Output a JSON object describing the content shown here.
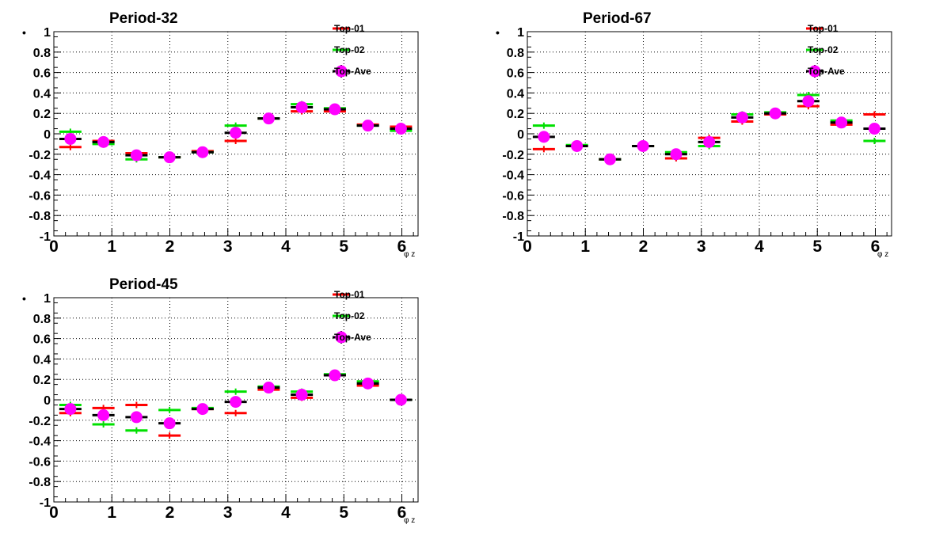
{
  "legend_labels": [
    "Top-01",
    "Top-02",
    "Top-Ave"
  ],
  "colors": {
    "top01": "#ff0000",
    "top02": "#00e000",
    "topave_marker": "#ff00ff",
    "topave_line": "#000000"
  },
  "chart_data": [
    {
      "type": "scatter",
      "title": "Period-32",
      "xlabel": "φ z",
      "ylabel": "•",
      "xlim": [
        0,
        6.28
      ],
      "ylim": [
        -1,
        1
      ],
      "grid": true,
      "legend_position": "top-right",
      "x_ticks": [
        "0",
        "1",
        "2",
        "3",
        "4",
        "5",
        "6"
      ],
      "y_ticks": [
        "-1",
        "-0.8",
        "-0.6",
        "-0.4",
        "-0.2",
        "0",
        "0.2",
        "0.4",
        "0.6",
        "0.8",
        "1"
      ],
      "x": [
        0.285,
        0.855,
        1.425,
        1.995,
        2.565,
        3.135,
        3.705,
        4.275,
        4.845,
        5.415,
        5.985
      ],
      "series": [
        {
          "name": "Top-01",
          "values": [
            -0.13,
            -0.07,
            -0.19,
            -0.23,
            -0.17,
            -0.07,
            0.15,
            0.22,
            0.22,
            0.09,
            0.07
          ]
        },
        {
          "name": "Top-02",
          "values": [
            0.02,
            -0.1,
            -0.25,
            -0.23,
            -0.18,
            0.08,
            0.15,
            0.29,
            0.25,
            0.08,
            0.03
          ]
        },
        {
          "name": "Top-Ave",
          "values": [
            -0.05,
            -0.08,
            -0.21,
            -0.23,
            -0.18,
            0.01,
            0.15,
            0.26,
            0.24,
            0.08,
            0.05
          ]
        }
      ]
    },
    {
      "type": "scatter",
      "title": "Period-67",
      "xlabel": "φ z",
      "ylabel": "•",
      "xlim": [
        0,
        6.28
      ],
      "ylim": [
        -1,
        1
      ],
      "grid": true,
      "legend_position": "top-right",
      "x_ticks": [
        "0",
        "1",
        "2",
        "3",
        "4",
        "5",
        "6"
      ],
      "y_ticks": [
        "-1",
        "-0.8",
        "-0.6",
        "-0.4",
        "-0.2",
        "0",
        "0.2",
        "0.4",
        "0.6",
        "0.8",
        "1"
      ],
      "x": [
        0.285,
        0.855,
        1.425,
        1.995,
        2.565,
        3.135,
        3.705,
        4.275,
        4.845,
        5.415,
        5.985
      ],
      "series": [
        {
          "name": "Top-01",
          "values": [
            -0.15,
            -0.12,
            -0.25,
            -0.12,
            -0.24,
            -0.04,
            0.12,
            0.19,
            0.27,
            0.09,
            0.19
          ]
        },
        {
          "name": "Top-02",
          "values": [
            0.08,
            -0.11,
            -0.25,
            -0.12,
            -0.18,
            -0.12,
            0.19,
            0.21,
            0.38,
            0.13,
            -0.07
          ]
        },
        {
          "name": "Top-Ave",
          "values": [
            -0.03,
            -0.12,
            -0.25,
            -0.12,
            -0.2,
            -0.08,
            0.16,
            0.2,
            0.32,
            0.11,
            0.05
          ]
        }
      ]
    },
    {
      "type": "scatter",
      "title": "Period-45",
      "xlabel": "φ z",
      "ylabel": "•",
      "xlim": [
        0,
        6.28
      ],
      "ylim": [
        -1,
        1
      ],
      "grid": true,
      "legend_position": "top-right",
      "x_ticks": [
        "0",
        "1",
        "2",
        "3",
        "4",
        "5",
        "6"
      ],
      "y_ticks": [
        "-1",
        "-0.8",
        "-0.6",
        "-0.4",
        "-0.2",
        "0",
        "0.2",
        "0.4",
        "0.6",
        "0.8",
        "1"
      ],
      "x": [
        0.285,
        0.855,
        1.425,
        1.995,
        2.565,
        3.135,
        3.705,
        4.275,
        4.845,
        5.415,
        5.985
      ],
      "series": [
        {
          "name": "Top-01",
          "values": [
            -0.13,
            -0.08,
            -0.05,
            -0.35,
            -0.09,
            -0.13,
            0.1,
            0.02,
            0.24,
            0.14,
            0.0
          ]
        },
        {
          "name": "Top-02",
          "values": [
            -0.05,
            -0.24,
            -0.3,
            -0.1,
            -0.08,
            0.08,
            0.13,
            0.08,
            0.25,
            0.18,
            0.0
          ]
        },
        {
          "name": "Top-Ave",
          "values": [
            -0.09,
            -0.15,
            -0.17,
            -0.23,
            -0.09,
            -0.02,
            0.12,
            0.05,
            0.24,
            0.16,
            0.0
          ]
        }
      ]
    }
  ]
}
